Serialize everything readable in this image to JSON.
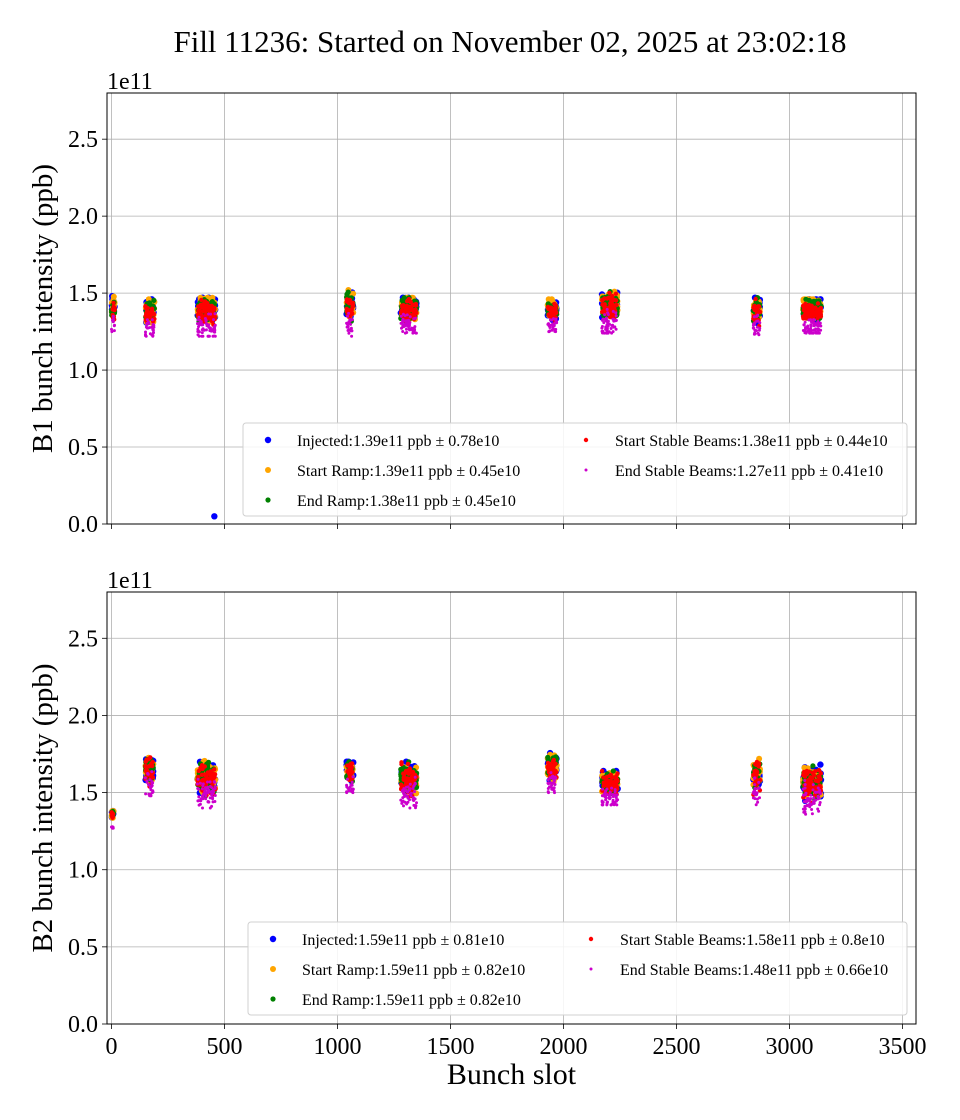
{
  "title": "Fill 11236: Started on November 02, 2025 at 23:02:18",
  "chart_data": [
    {
      "type": "scatter",
      "ylabel": "B1 bunch intensity (ppb)",
      "xlabel": "",
      "offset_label": "1e11",
      "xlim": [
        -20,
        3560
      ],
      "ylim": [
        0,
        2.8
      ],
      "xticks": [
        0,
        500,
        1000,
        1500,
        2000,
        2500,
        3000,
        3500
      ],
      "yticks": [
        "0.0",
        "0.5",
        "1.0",
        "1.5",
        "2.0",
        "2.5"
      ],
      "show_xtick_labels": false,
      "grid": true,
      "legend_placement": "lower-right",
      "trains": [
        {
          "slots": [
            0,
            14
          ],
          "range": [
            1.25,
            1.48
          ]
        },
        {
          "slots": [
            150,
            190
          ],
          "range": [
            1.22,
            1.46
          ]
        },
        {
          "slots": [
            380,
            460
          ],
          "range": [
            1.22,
            1.47
          ]
        },
        {
          "slots": [
            1040,
            1070
          ],
          "range": [
            1.22,
            1.52
          ]
        },
        {
          "slots": [
            1280,
            1350
          ],
          "range": [
            1.24,
            1.47
          ]
        },
        {
          "slots": [
            1930,
            1970
          ],
          "range": [
            1.25,
            1.46
          ]
        },
        {
          "slots": [
            2170,
            2240
          ],
          "range": [
            1.24,
            1.51
          ]
        },
        {
          "slots": [
            2840,
            2870
          ],
          "range": [
            1.23,
            1.47
          ]
        },
        {
          "slots": [
            3060,
            3140
          ],
          "range": [
            1.24,
            1.46
          ]
        }
      ],
      "outliers": [
        {
          "series": "Injected",
          "slot": 455,
          "value": 0.05
        }
      ],
      "series": [
        {
          "name": "Injected",
          "legend": "Injected:1.39e11 ppb ± 0.78e10",
          "color": "#0000ff",
          "shift": 0.02
        },
        {
          "name": "Start Ramp",
          "legend": "Start Ramp:1.39e11 ppb ± 0.45e10",
          "color": "#ffa500",
          "shift": 0.02
        },
        {
          "name": "End Ramp",
          "legend": "End Ramp:1.38e11 ppb ± 0.45e10",
          "color": "#008000",
          "shift": 0.01
        },
        {
          "name": "Start Stable Beams",
          "legend": "Start Stable Beams:1.38e11 ppb ± 0.44e10",
          "color": "#ff0000",
          "shift": 0.0
        },
        {
          "name": "End Stable Beams",
          "legend": "End Stable Beams:1.27e11 ppb ± 0.41e10",
          "color": "#cc00cc",
          "shift": -0.1
        }
      ]
    },
    {
      "type": "scatter",
      "ylabel": "B2 bunch intensity (ppb)",
      "xlabel": "Bunch slot",
      "offset_label": "1e11",
      "xlim": [
        -20,
        3560
      ],
      "ylim": [
        0,
        2.8
      ],
      "xticks": [
        0,
        500,
        1000,
        1500,
        2000,
        2500,
        3000,
        3500
      ],
      "yticks": [
        "0.0",
        "0.5",
        "1.0",
        "1.5",
        "2.0",
        "2.5"
      ],
      "show_xtick_labels": true,
      "grid": true,
      "legend_placement": "lower-right",
      "trains": [
        {
          "slots": [
            0,
            10
          ],
          "range": [
            1.27,
            1.38
          ]
        },
        {
          "slots": [
            150,
            185
          ],
          "range": [
            1.48,
            1.75
          ]
        },
        {
          "slots": [
            380,
            460
          ],
          "range": [
            1.4,
            1.72
          ]
        },
        {
          "slots": [
            1040,
            1070
          ],
          "range": [
            1.5,
            1.7
          ]
        },
        {
          "slots": [
            1280,
            1350
          ],
          "range": [
            1.4,
            1.7
          ]
        },
        {
          "slots": [
            1930,
            1970
          ],
          "range": [
            1.5,
            1.76
          ]
        },
        {
          "slots": [
            2170,
            2240
          ],
          "range": [
            1.42,
            1.64
          ]
        },
        {
          "slots": [
            2840,
            2870
          ],
          "range": [
            1.42,
            1.72
          ]
        },
        {
          "slots": [
            3060,
            3140
          ],
          "range": [
            1.36,
            1.69
          ]
        }
      ],
      "outliers": [],
      "series": [
        {
          "name": "Injected",
          "legend": "Injected:1.59e11 ppb ± 0.81e10",
          "color": "#0000ff",
          "shift": 0.01
        },
        {
          "name": "Start Ramp",
          "legend": "Start Ramp:1.59e11 ppb ± 0.82e10",
          "color": "#ffa500",
          "shift": 0.01
        },
        {
          "name": "End Ramp",
          "legend": "End Ramp:1.59e11 ppb ± 0.82e10",
          "color": "#008000",
          "shift": 0.005
        },
        {
          "name": "Start Stable Beams",
          "legend": "Start Stable Beams:1.58e11 ppb ± 0.8e10",
          "color": "#ff0000",
          "shift": 0.0
        },
        {
          "name": "End Stable Beams",
          "legend": "End Stable Beams:1.48e11 ppb ± 0.66e10",
          "color": "#cc00cc",
          "shift": -0.1
        }
      ]
    }
  ]
}
